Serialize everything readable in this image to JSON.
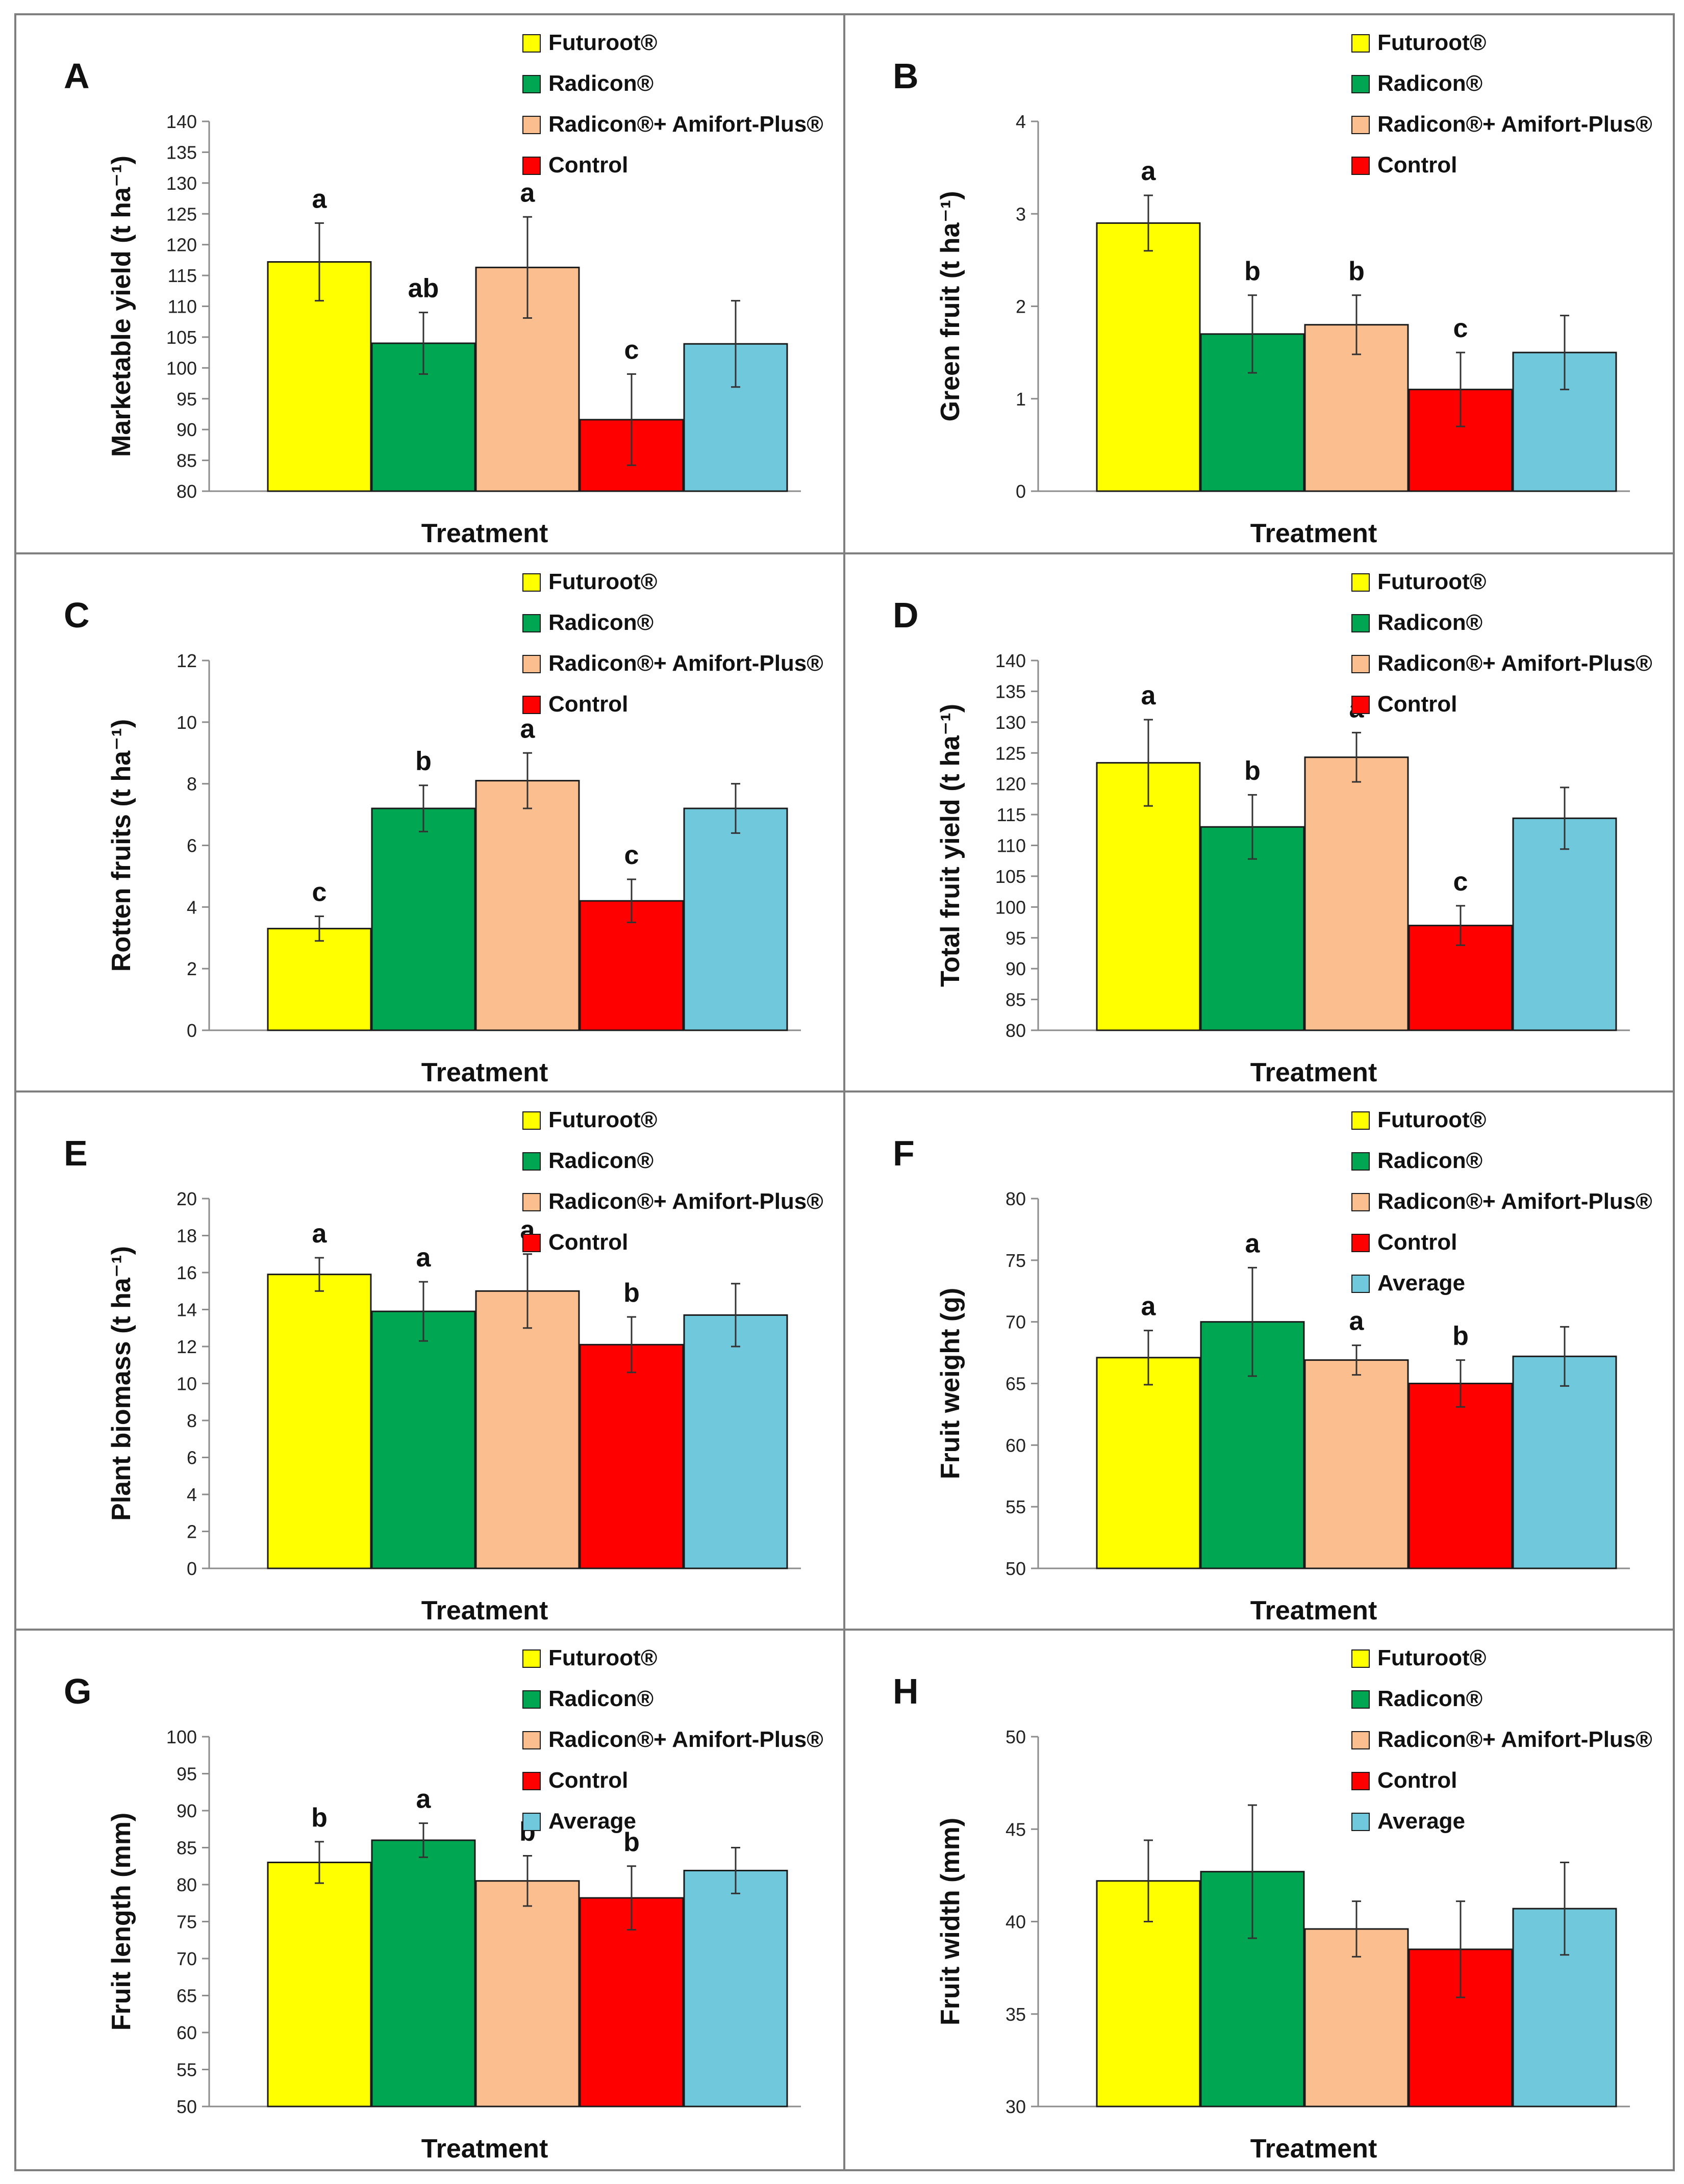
{
  "figure": {
    "categories": [
      "Futuroot®",
      "Radicon®",
      "Radicon®+ Amifort-Plus®",
      "Control",
      "Average"
    ],
    "colors": [
      "#ffff00",
      "#00a651",
      "#fbbf8f",
      "#ff0000",
      "#70c8dc"
    ],
    "frame_color": "#7f7f7f"
  },
  "chart_data": [
    {
      "panel": "A",
      "type": "bar",
      "xlabel": "Treatment",
      "ylabel": "Marketable yield (t ha⁻¹)",
      "ylim": [
        80,
        140
      ],
      "tick_step": 5,
      "legend": [
        "Futuroot®",
        "Radicon®",
        "Radicon®+ Amifort-Plus®",
        "Control"
      ],
      "values": [
        117.2,
        104.0,
        116.3,
        91.6,
        103.9
      ],
      "errors": [
        6.3,
        5.0,
        8.2,
        7.4,
        7.0
      ],
      "letters": [
        "a",
        "ab",
        "a",
        "c",
        ""
      ]
    },
    {
      "panel": "B",
      "type": "bar",
      "xlabel": "Treatment",
      "ylabel": "Green fruit (t ha⁻¹)",
      "ylim": [
        0,
        4
      ],
      "tick_step": 1,
      "legend": [
        "Futuroot®",
        "Radicon®",
        "Radicon®+ Amifort-Plus®",
        "Control"
      ],
      "values": [
        2.9,
        1.7,
        1.8,
        1.1,
        1.5
      ],
      "errors": [
        0.3,
        0.42,
        0.32,
        0.4,
        0.4
      ],
      "letters": [
        "a",
        "b",
        "b",
        "c",
        ""
      ]
    },
    {
      "panel": "C",
      "type": "bar",
      "xlabel": "Treatment",
      "ylabel": "Rotten fruits (t ha⁻¹)",
      "ylim": [
        0,
        12
      ],
      "tick_step": 2,
      "legend": [
        "Futuroot®",
        "Radicon®",
        "Radicon®+ Amifort-Plus®",
        "Control"
      ],
      "values": [
        3.3,
        7.2,
        8.1,
        4.2,
        7.2
      ],
      "errors": [
        0.4,
        0.75,
        0.9,
        0.7,
        0.8
      ],
      "letters": [
        "c",
        "b",
        "a",
        "c",
        ""
      ]
    },
    {
      "panel": "D",
      "type": "bar",
      "xlabel": "Treatment",
      "ylabel": "Total fruit yield (t ha⁻¹)",
      "ylim": [
        80,
        140
      ],
      "tick_step": 5,
      "legend": [
        "Futuroot®",
        "Radicon®",
        "Radicon®+ Amifort-Plus®",
        "Control"
      ],
      "values": [
        123.4,
        113.0,
        124.3,
        97.0,
        114.4
      ],
      "errors": [
        7.0,
        5.2,
        4.0,
        3.2,
        5.0
      ],
      "letters": [
        "a",
        "b",
        "a",
        "c",
        ""
      ]
    },
    {
      "panel": "E",
      "type": "bar",
      "xlabel": "Treatment",
      "ylabel": "Plant biomass (t ha⁻¹)",
      "ylim": [
        0,
        20
      ],
      "tick_step": 2,
      "legend": [
        "Futuroot®",
        "Radicon®",
        "Radicon®+ Amifort-Plus®",
        "Control"
      ],
      "values": [
        15.9,
        13.9,
        15.0,
        12.1,
        13.7
      ],
      "errors": [
        0.9,
        1.6,
        2.0,
        1.5,
        1.7
      ],
      "letters": [
        "a",
        "a",
        "a",
        "b",
        ""
      ]
    },
    {
      "panel": "F",
      "type": "bar",
      "xlabel": "Treatment",
      "ylabel": "Fruit weight (g)",
      "ylim": [
        50,
        80
      ],
      "tick_step": 5,
      "legend": [
        "Futuroot®",
        "Radicon®",
        "Radicon®+ Amifort-Plus®",
        "Control",
        "Average"
      ],
      "values": [
        67.1,
        70.0,
        66.9,
        65.0,
        67.2
      ],
      "errors": [
        2.2,
        4.4,
        1.2,
        1.9,
        2.4
      ],
      "letters": [
        "a",
        "a",
        "a",
        "b",
        ""
      ]
    },
    {
      "panel": "G",
      "type": "bar",
      "xlabel": "Treatment",
      "ylabel": "Fruit length (mm)",
      "ylim": [
        50,
        100
      ],
      "tick_step": 5,
      "legend": [
        "Futuroot®",
        "Radicon®",
        "Radicon®+ Amifort-Plus®",
        "Control",
        "Average"
      ],
      "values": [
        83.0,
        86.0,
        80.5,
        78.2,
        81.9
      ],
      "errors": [
        2.8,
        2.3,
        3.4,
        4.3,
        3.1
      ],
      "letters": [
        "b",
        "a",
        "b",
        "b",
        ""
      ]
    },
    {
      "panel": "H",
      "type": "bar",
      "xlabel": "Treatment",
      "ylabel": "Fruit width (mm)",
      "ylim": [
        30,
        50
      ],
      "tick_step": 5,
      "legend": [
        "Futuroot®",
        "Radicon®",
        "Radicon®+ Amifort-Plus®",
        "Control",
        "Average"
      ],
      "values": [
        42.2,
        42.7,
        39.6,
        38.5,
        40.7
      ],
      "errors": [
        2.2,
        3.6,
        1.5,
        2.6,
        2.5
      ],
      "letters": [
        "",
        "",
        "",
        "",
        ""
      ]
    }
  ]
}
